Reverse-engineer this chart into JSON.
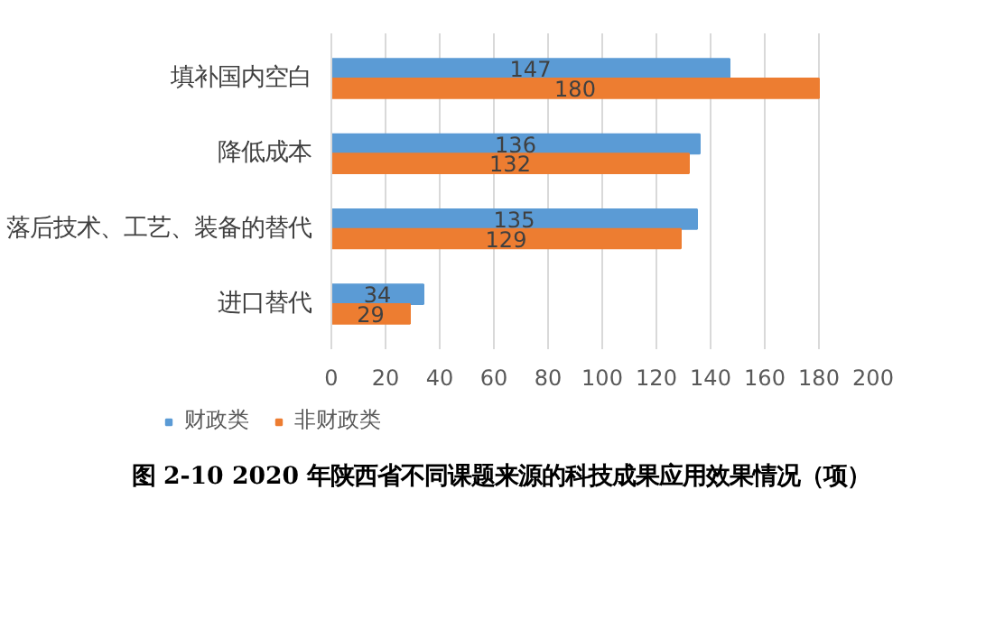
{
  "chart_data": {
    "type": "bar",
    "orientation": "horizontal",
    "title": "图 2-10  2020 年陕西省不同课题来源的科技成果应用效果情况（项）",
    "categories": [
      "填补国内空白",
      "降低成本",
      "落后技术、工艺、装备的替代",
      "进口替代"
    ],
    "series": [
      {
        "name": "财政类",
        "color": "#5b9bd5",
        "values": [
          147,
          136,
          135,
          34
        ]
      },
      {
        "name": "非财政类",
        "color": "#ed7d31",
        "values": [
          180,
          132,
          129,
          29
        ]
      }
    ],
    "xlim": [
      0,
      200
    ],
    "xticks": [
      0,
      20,
      40,
      60,
      80,
      100,
      120,
      140,
      160,
      180,
      200
    ],
    "grid": "x",
    "legend": "bottom",
    "data_labels": true
  }
}
